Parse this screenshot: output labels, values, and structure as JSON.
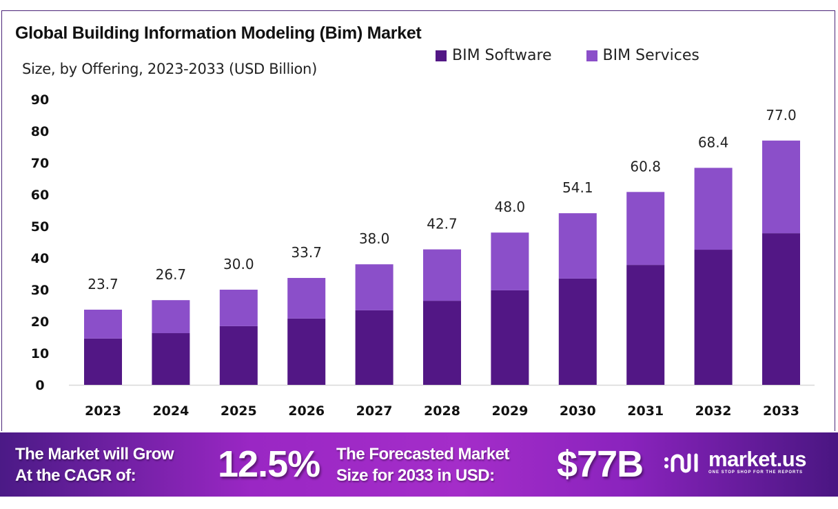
{
  "chart_data": {
    "type": "bar",
    "stacked": true,
    "title": "Global Building Information Modeling (Bim) Market",
    "subtitle": "Size, by Offering, 2023-2033 (USD Billion)",
    "categories": [
      "2023",
      "2024",
      "2025",
      "2026",
      "2027",
      "2028",
      "2029",
      "2030",
      "2031",
      "2032",
      "2033"
    ],
    "series": [
      {
        "name": "BIM Software",
        "color": "#521785",
        "values": [
          14.6,
          16.3,
          18.5,
          20.9,
          23.5,
          26.5,
          29.8,
          33.5,
          37.8,
          42.6,
          47.8
        ]
      },
      {
        "name": "BIM Services",
        "color": "#8b4fc9",
        "values": [
          9.1,
          10.4,
          11.5,
          12.8,
          14.5,
          16.2,
          18.2,
          20.6,
          23.0,
          25.8,
          29.2
        ]
      }
    ],
    "totals": [
      "23.7",
      "26.7",
      "30.0",
      "33.7",
      "38.0",
      "42.7",
      "48.0",
      "54.1",
      "60.8",
      "68.4",
      "77.0"
    ],
    "yticks": [
      0,
      10,
      20,
      30,
      40,
      50,
      60,
      70,
      80,
      90
    ],
    "ylim": [
      0,
      90
    ],
    "grid": false,
    "legend": "top-right"
  },
  "banner": {
    "cagr_label_1": "The Market will Grow",
    "cagr_label_2": "At the CAGR of:",
    "cagr_value": "12.5%",
    "forecast_label_1": "The Forecasted Market",
    "forecast_label_2": "Size for 2033 in USD:",
    "forecast_value": "$77B",
    "logo_name": "market.us",
    "logo_tagline": "ONE STOP SHOP FOR THE REPORTS"
  }
}
